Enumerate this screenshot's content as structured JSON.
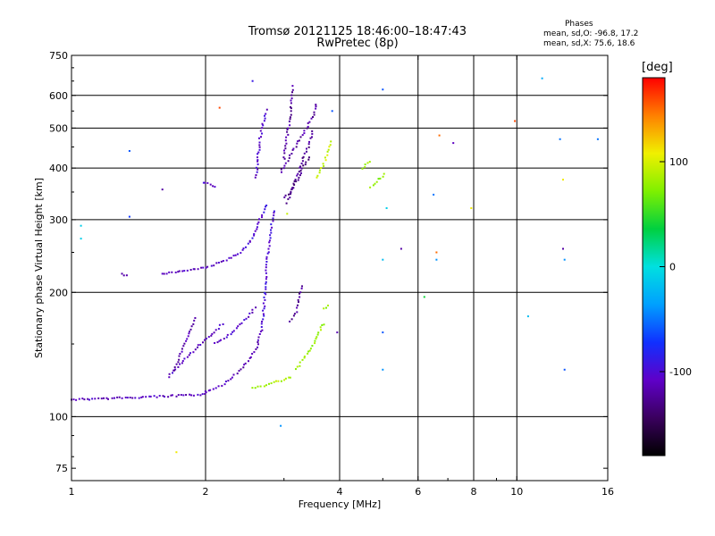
{
  "header": {
    "title": "Tromsø 20121125 18:46:00–18:47:43",
    "subtitle": "RwPretec (8p)"
  },
  "phase_box": {
    "title": "Phases",
    "o_label": "mean, sd,O: -96.8, 17.2",
    "x_label": "mean, sd,X:  75.6, 18.6"
  },
  "colorbar": {
    "unit": "[deg]",
    "ticks": [
      100,
      0,
      -100
    ],
    "range": [
      -180,
      180
    ],
    "colors": [
      "#000000",
      "#3a005e",
      "#5f00c8",
      "#1030ff",
      "#00a0ff",
      "#00e0e0",
      "#00d040",
      "#7ff000",
      "#f0f000",
      "#ff8000",
      "#ff0000"
    ]
  },
  "chart_data": {
    "type": "scatter",
    "title": "Tromsø 20121125 18:46:00–18:47:43",
    "subtitle": "RwPretec (8p)",
    "xlabel": "Frequency [MHz]",
    "ylabel": "Stationary phase Virtual Height [km]",
    "xscale": "log",
    "yscale": "log",
    "xlim": [
      1,
      16
    ],
    "ylim": [
      70,
      750
    ],
    "xticks": [
      1,
      2,
      4,
      6,
      8,
      10,
      16
    ],
    "yticks": [
      75,
      100,
      200,
      300,
      400,
      500,
      600,
      750
    ],
    "x_gridlines": [
      2,
      4,
      6,
      8,
      10,
      16
    ],
    "y_gridlines": [
      100,
      200,
      300,
      400,
      500,
      600,
      750
    ],
    "grid": true,
    "color_by": "phase (deg)",
    "traces": [
      {
        "f": [
          1.0,
          1.3,
          1.6,
          2.0,
          2.02
        ],
        "h": [
          110,
          111,
          112,
          113,
          115
        ],
        "phase": -110
      },
      {
        "f": [
          2.0,
          2.2,
          2.4,
          2.6,
          2.68
        ],
        "h": [
          115,
          120,
          130,
          145,
          165
        ],
        "phase": -112
      },
      {
        "f": [
          1.65,
          1.8,
          1.95,
          2.1,
          2.2
        ],
        "h": [
          125,
          138,
          150,
          160,
          170
        ],
        "phase": -108
      },
      {
        "f": [
          1.7,
          1.8,
          1.9
        ],
        "h": [
          130,
          150,
          175
        ],
        "phase": -115
      },
      {
        "f": [
          2.1,
          2.3,
          2.5,
          2.6
        ],
        "h": [
          150,
          160,
          175,
          185
        ],
        "phase": -105
      },
      {
        "f": [
          2.68,
          2.72,
          2.75,
          2.8,
          2.85
        ],
        "h": [
          165,
          200,
          240,
          280,
          320
        ],
        "phase": -98
      },
      {
        "f": [
          1.6,
          1.8,
          2.0,
          2.2,
          2.4
        ],
        "h": [
          222,
          225,
          230,
          238,
          250
        ],
        "phase": -110
      },
      {
        "f": [
          2.4,
          2.55,
          2.65,
          2.75
        ],
        "h": [
          250,
          270,
          300,
          330
        ],
        "phase": -100
      },
      {
        "f": [
          1.3,
          1.35
        ],
        "h": [
          222,
          218
        ],
        "phase": -112
      },
      {
        "f": [
          1.98,
          2.05,
          2.12
        ],
        "h": [
          370,
          365,
          360
        ],
        "phase": -105
      },
      {
        "f": [
          2.6,
          2.62,
          2.65,
          2.7,
          2.75
        ],
        "h": [
          380,
          420,
          470,
          520,
          560
        ],
        "phase": -105
      },
      {
        "f": [
          2.95,
          3.1,
          3.3,
          3.5,
          3.55
        ],
        "h": [
          390,
          430,
          480,
          540,
          580
        ],
        "phase": -120
      },
      {
        "f": [
          3.05,
          3.15,
          3.25,
          3.4,
          3.5
        ],
        "h": [
          330,
          360,
          400,
          450,
          500
        ],
        "phase": -125
      },
      {
        "f": [
          3.0,
          3.1,
          3.2,
          3.3,
          3.45
        ],
        "h": [
          340,
          350,
          370,
          400,
          430
        ],
        "phase": -130
      },
      {
        "f": [
          3.0,
          3.05,
          3.1,
          3.12,
          3.15
        ],
        "h": [
          420,
          480,
          540,
          590,
          640
        ],
        "phase": -120
      },
      {
        "f": [
          3.55,
          3.65,
          3.75,
          3.85
        ],
        "h": [
          380,
          400,
          430,
          470
        ],
        "phase": 95
      },
      {
        "f": [
          3.1,
          3.2,
          3.25,
          3.3
        ],
        "h": [
          170,
          180,
          195,
          210
        ],
        "phase": -125
      },
      {
        "f": [
          2.55,
          2.7,
          2.85,
          3.0,
          3.15
        ],
        "h": [
          117,
          119,
          121,
          123,
          125
        ],
        "phase": 85
      },
      {
        "f": [
          3.2,
          3.35,
          3.5,
          3.6,
          3.7
        ],
        "h": [
          130,
          140,
          150,
          160,
          170
        ],
        "phase": 80
      },
      {
        "f": [
          3.7,
          3.8
        ],
        "h": [
          182,
          188
        ],
        "phase": 75
      },
      {
        "f": [
          4.5,
          4.7
        ],
        "h": [
          400,
          420
        ],
        "phase": 85
      },
      {
        "f": [
          4.7,
          4.9,
          5.1
        ],
        "h": [
          360,
          375,
          390
        ],
        "phase": 75
      }
    ],
    "isolated_points": [
      {
        "f": 1.05,
        "h": 290,
        "phase": -10
      },
      {
        "f": 1.05,
        "h": 270,
        "phase": -10
      },
      {
        "f": 1.35,
        "h": 440,
        "phase": -60
      },
      {
        "f": 1.35,
        "h": 305,
        "phase": -70
      },
      {
        "f": 1.6,
        "h": 355,
        "phase": -120
      },
      {
        "f": 1.72,
        "h": 82,
        "phase": 110
      },
      {
        "f": 2.15,
        "h": 560,
        "phase": 160
      },
      {
        "f": 2.55,
        "h": 650,
        "phase": -90
      },
      {
        "f": 2.95,
        "h": 95,
        "phase": -40
      },
      {
        "f": 3.05,
        "h": 310,
        "phase": 95
      },
      {
        "f": 3.85,
        "h": 550,
        "phase": -60
      },
      {
        "f": 3.95,
        "h": 160,
        "phase": -115
      },
      {
        "f": 5.0,
        "h": 620,
        "phase": -60
      },
      {
        "f": 5.1,
        "h": 320,
        "phase": -10
      },
      {
        "f": 5.0,
        "h": 240,
        "phase": -20
      },
      {
        "f": 5.0,
        "h": 160,
        "phase": -60
      },
      {
        "f": 5.0,
        "h": 130,
        "phase": -40
      },
      {
        "f": 5.5,
        "h": 255,
        "phase": -120
      },
      {
        "f": 6.2,
        "h": 195,
        "phase": 40
      },
      {
        "f": 6.5,
        "h": 345,
        "phase": -50
      },
      {
        "f": 6.6,
        "h": 250,
        "phase": 150
      },
      {
        "f": 6.6,
        "h": 240,
        "phase": -40
      },
      {
        "f": 6.7,
        "h": 480,
        "phase": 150
      },
      {
        "f": 7.2,
        "h": 460,
        "phase": -110
      },
      {
        "f": 7.9,
        "h": 320,
        "phase": 110
      },
      {
        "f": 9.9,
        "h": 520,
        "phase": 160
      },
      {
        "f": 10.6,
        "h": 175,
        "phase": -20
      },
      {
        "f": 11.4,
        "h": 660,
        "phase": -30
      },
      {
        "f": 12.5,
        "h": 470,
        "phase": -50
      },
      {
        "f": 12.7,
        "h": 375,
        "phase": 110
      },
      {
        "f": 12.7,
        "h": 255,
        "phase": -120
      },
      {
        "f": 12.8,
        "h": 240,
        "phase": -40
      },
      {
        "f": 12.8,
        "h": 130,
        "phase": -60
      },
      {
        "f": 15.2,
        "h": 470,
        "phase": -50
      }
    ]
  }
}
